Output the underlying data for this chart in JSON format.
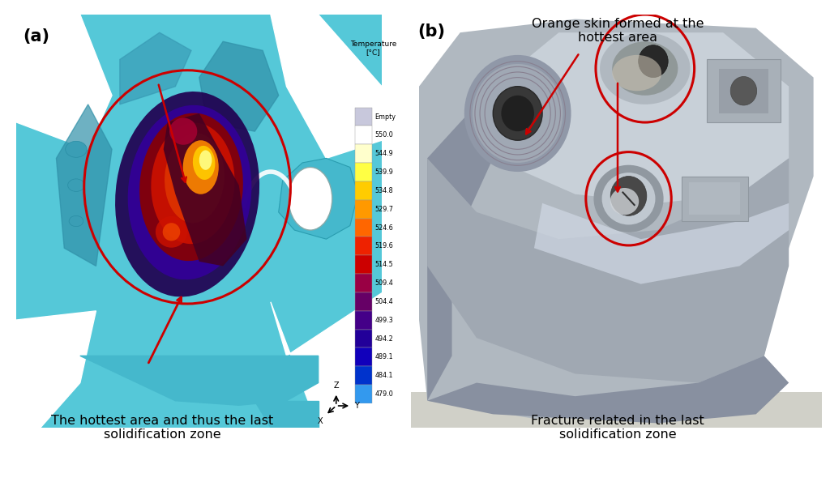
{
  "fig_width": 10.24,
  "fig_height": 6.0,
  "bg_color": "#ffffff",
  "label_a": "(a)",
  "label_b": "(b)",
  "colorbar_title": "Temperature\n[°C]",
  "colorbar_labels": [
    "Empty",
    "550.0",
    "544.9",
    "539.9",
    "534.8",
    "529.7",
    "524.6",
    "519.6",
    "514.5",
    "509.4",
    "504.4",
    "499.3",
    "494.2",
    "489.1",
    "484.1",
    "479.0"
  ],
  "colorbar_colors": [
    "#c8c8dc",
    "#ffffff",
    "#ffffcc",
    "#ffff44",
    "#ffcc00",
    "#ff9900",
    "#ff6600",
    "#ee2200",
    "#cc0000",
    "#990044",
    "#660066",
    "#440088",
    "#220099",
    "#1100bb",
    "#0033cc",
    "#3399ee"
  ],
  "annotation_top": "Orange skin formed at the\nhottest area",
  "annotation_bottom_left": "The hottest area and thus the last\nsolidification zone",
  "annotation_bottom_right": "Fracture related in the last\nsolidification zone",
  "arrow_color": "#cc0000",
  "circle_color": "#cc0000",
  "text_color": "#000000",
  "teal_dark": "#3aaabb",
  "teal_mid": "#45b8cc",
  "teal_light": "#66ccdd",
  "teal_bg": "#55c8d8",
  "font_size_label": 13,
  "font_size_annot": 11.5
}
